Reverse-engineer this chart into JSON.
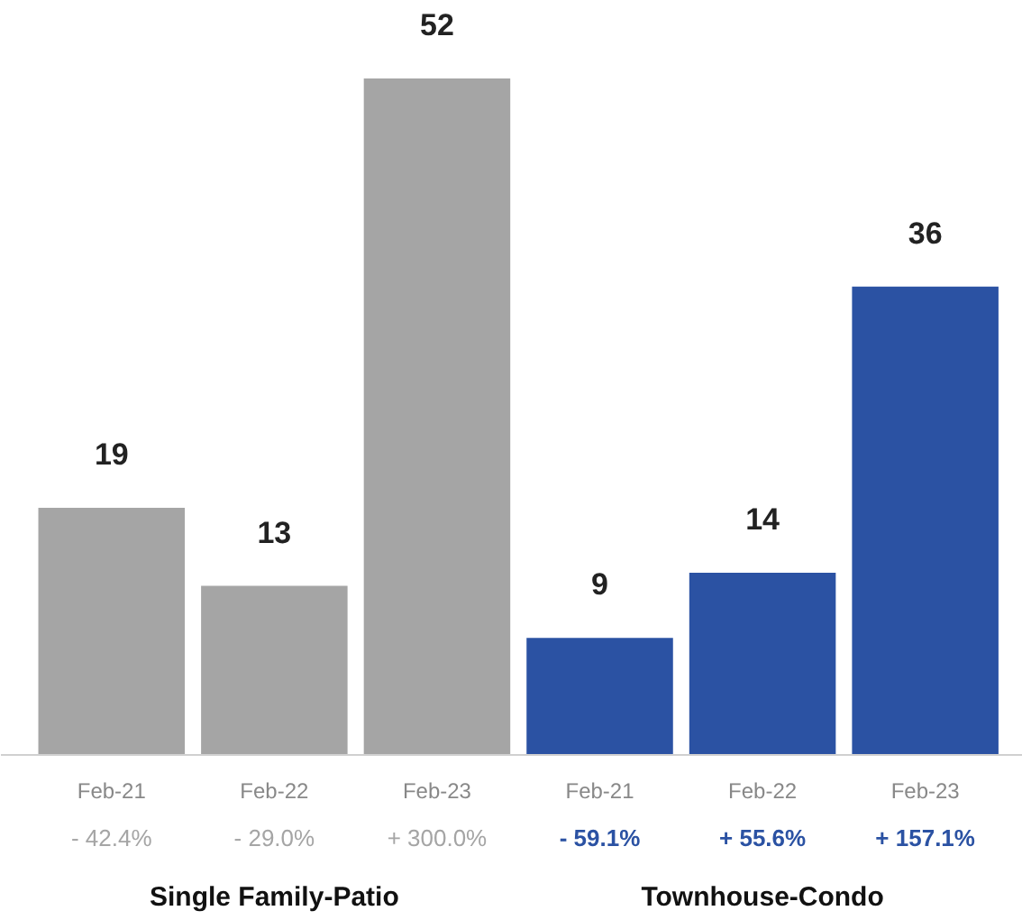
{
  "chart_data": {
    "type": "bar",
    "categories": [
      "Feb-21",
      "Feb-22",
      "Feb-23",
      "Feb-21",
      "Feb-22",
      "Feb-23"
    ],
    "values": [
      19,
      13,
      52,
      9,
      14,
      36
    ],
    "colors": [
      "#a5a5a5",
      "#a5a5a5",
      "#a5a5a5",
      "#2b52a3",
      "#2b52a3",
      "#2b52a3"
    ],
    "data_labels": true,
    "annotations": [
      "- 42.4%",
      "- 29.0%",
      "+ 300.0%",
      "- 59.1%",
      "+ 55.6%",
      "+ 157.1%",
      "Single Family-Patio",
      "Townhouse-Condo"
    ]
  }
}
